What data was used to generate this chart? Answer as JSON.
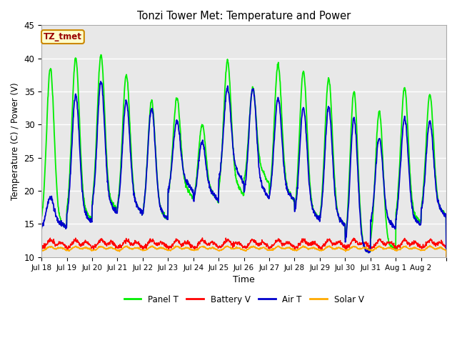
{
  "title": "Tonzi Tower Met: Temperature and Power",
  "xlabel": "Time",
  "ylabel": "Temperature (C) / Power (V)",
  "ylim": [
    10,
    45
  ],
  "annotation_text": "TZ_tmet",
  "annotation_facecolor": "#ffffcc",
  "annotation_edgecolor": "#cc8800",
  "annotation_textcolor": "#990000",
  "bg_color": "#e8e8e8",
  "fig_color": "#ffffff",
  "grid_color": "#ffffff",
  "series": {
    "panel_t": {
      "label": "Panel T",
      "color": "#00ee00",
      "linewidth": 1.3
    },
    "battery_v": {
      "label": "Battery V",
      "color": "#ff0000",
      "linewidth": 1.1
    },
    "air_t": {
      "label": "Air T",
      "color": "#0000cc",
      "linewidth": 1.3
    },
    "solar_v": {
      "label": "Solar V",
      "color": "#ffaa00",
      "linewidth": 1.1
    }
  },
  "xtick_labels": [
    "Jul 18",
    "Jul 19",
    "Jul 20",
    "Jul 21",
    "Jul 22",
    "Jul 23",
    "Jul 24",
    "Jul 25",
    "Jul 26",
    "Jul 27",
    "Jul 28",
    "Jul 29",
    "Jul 30",
    "Jul 31",
    "Aug 1",
    "Aug 2"
  ],
  "ytick_vals": [
    10,
    15,
    20,
    25,
    30,
    35,
    40,
    45
  ],
  "n_days": 16,
  "panel_peaks": [
    38.5,
    15.0,
    40.0,
    16.5,
    40.5,
    18.0,
    37.5,
    17.5,
    33.5,
    16.5,
    34.0,
    20.0,
    30.0,
    19.5,
    39.5,
    20.5,
    35.5,
    22.5,
    39.0,
    19.5,
    38.0,
    16.5,
    37.0,
    15.5,
    35.0,
    11.0,
    32.0,
    11.5,
    35.5,
    16.0,
    34.5,
    17.0
  ],
  "air_peaks": [
    19.0,
    15.0,
    34.5,
    16.0,
    36.5,
    17.5,
    33.5,
    17.5,
    32.5,
    16.5,
    30.5,
    21.0,
    27.5,
    19.5,
    35.5,
    22.5,
    35.5,
    20.0,
    34.0,
    19.5,
    32.5,
    16.5,
    32.5,
    15.5,
    31.0,
    11.0,
    28.0,
    15.0,
    31.0,
    15.5,
    30.5,
    17.0
  ]
}
